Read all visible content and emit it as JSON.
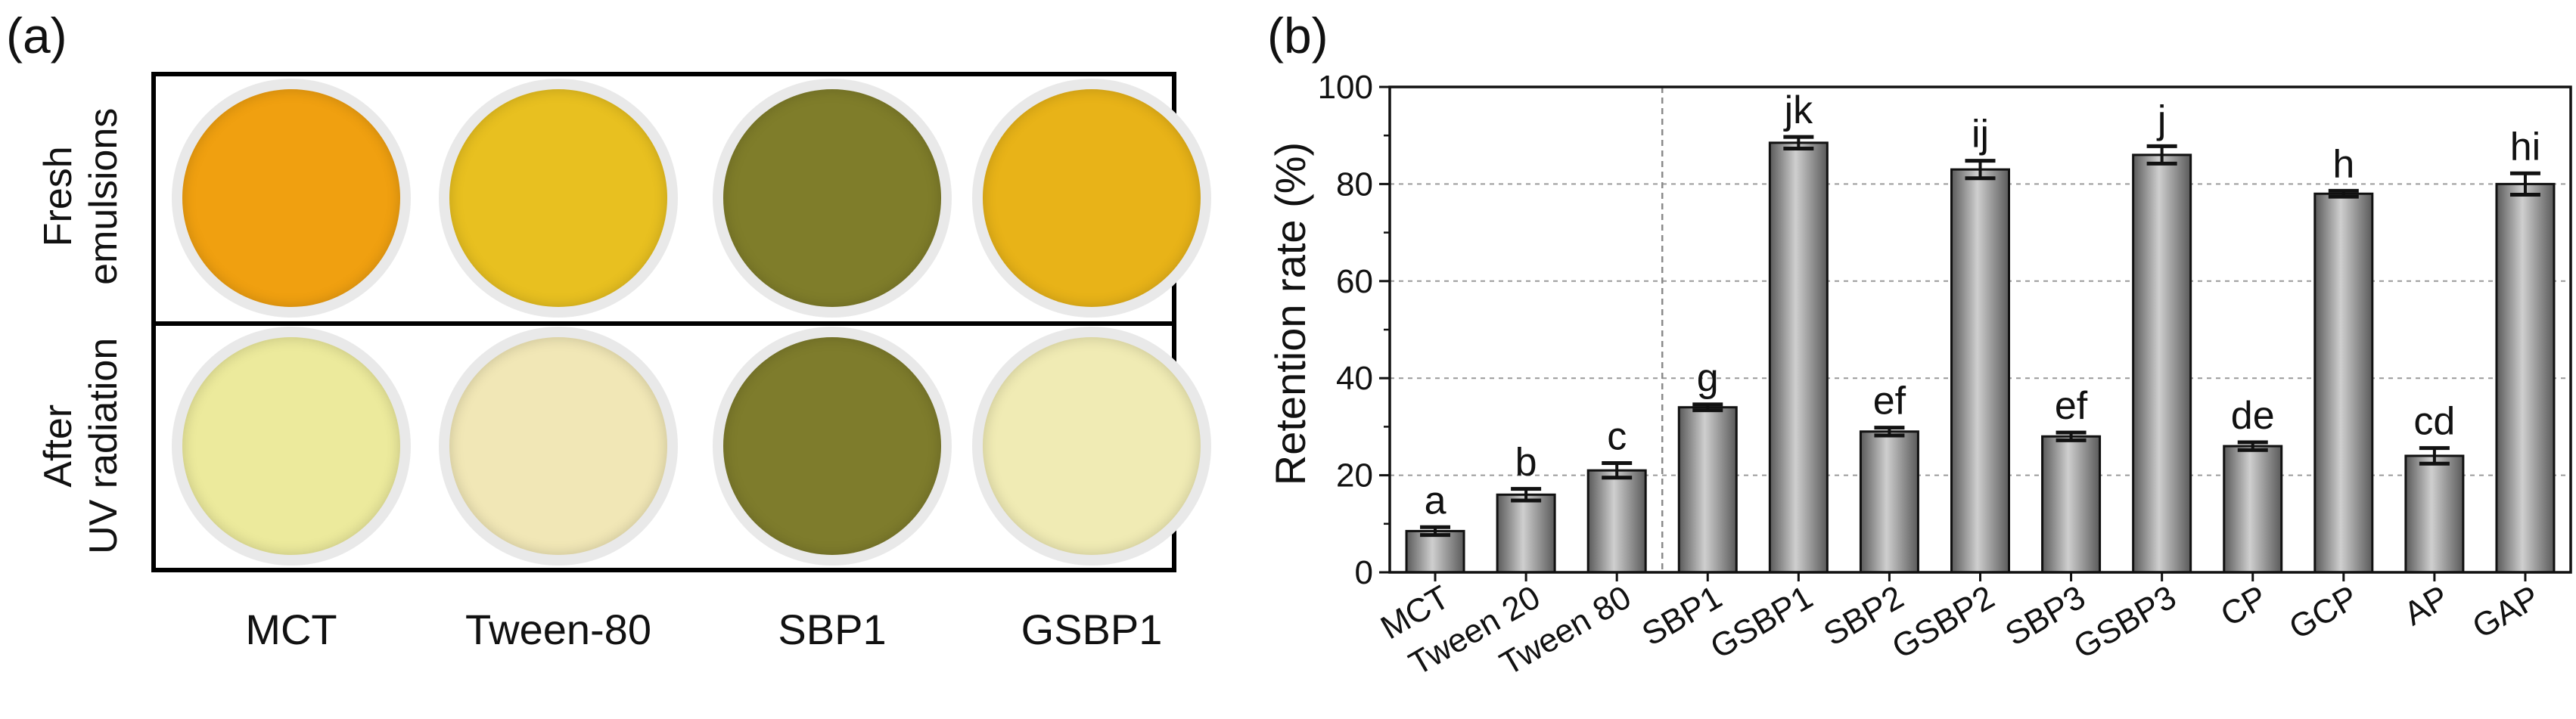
{
  "panel_a": {
    "label": "(a)",
    "rows": [
      {
        "label_line1": "Fresh",
        "label_line2": "emulsions"
      },
      {
        "label_line1": "After",
        "label_line2": "UV radiation"
      }
    ],
    "columns": [
      "MCT",
      "Tween-80",
      "SBP1",
      "GSBP1"
    ],
    "dish_colors": {
      "fresh": [
        "#f0a010",
        "#e8c020",
        "#7f7d2a",
        "#e8b318"
      ],
      "after_uv": [
        "#ecea9c",
        "#f1e7b6",
        "#7e7c2c",
        "#f0ebb4"
      ]
    }
  },
  "chart_data": {
    "type": "bar",
    "panel_label": "(b)",
    "title": "",
    "xlabel": "",
    "ylabel": "Retention rate (%)",
    "ylim": [
      0,
      100
    ],
    "yticks": [
      "0",
      "20",
      "40",
      "60",
      "80",
      "100"
    ],
    "grid": true,
    "categories": [
      "MCT",
      "Tween 20",
      "Tween 80",
      "SBP1",
      "GSBP1",
      "SBP2",
      "GSBP2",
      "SBP3",
      "GSBP3",
      "CP",
      "GCP",
      "AP",
      "GAP"
    ],
    "values": [
      8.5,
      16,
      21,
      34,
      88.5,
      29,
      83,
      28,
      86,
      26,
      78,
      24,
      80
    ],
    "errors": [
      0.8,
      1.2,
      1.5,
      0.6,
      1.2,
      0.8,
      1.8,
      0.8,
      1.8,
      0.8,
      0.6,
      1.6,
      2.2
    ],
    "annotations": [
      "a",
      "b",
      "c",
      "g",
      "jk",
      "ef",
      "ij",
      "ef",
      "j",
      "de",
      "h",
      "cd",
      "hi"
    ],
    "separator_after_index": 2,
    "bar_color": "#8c8c8c"
  }
}
